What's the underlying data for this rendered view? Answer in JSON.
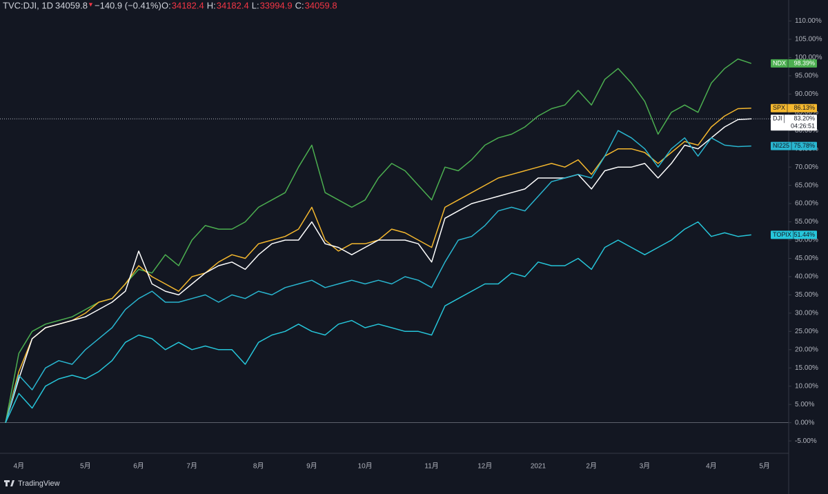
{
  "header": {
    "symbol": "TVC:DJI, 1D",
    "price": "34059.8",
    "arrow": "▼",
    "change": "−140.9 (−0.41%)",
    "ohlc": [
      {
        "label": "O:",
        "value": "34182.4"
      },
      {
        "label": "H:",
        "value": "34182.4"
      },
      {
        "label": "L:",
        "value": "33994.9"
      },
      {
        "label": "C:",
        "value": "34059.8"
      }
    ]
  },
  "brand": "TradingView",
  "chart_data": {
    "type": "line",
    "categories": [
      null,
      "4月",
      null,
      null,
      null,
      null,
      "5月",
      null,
      null,
      null,
      "6月",
      null,
      null,
      null,
      "7月",
      null,
      null,
      null,
      null,
      "8月",
      null,
      null,
      null,
      "9月",
      null,
      null,
      null,
      "10月",
      null,
      null,
      null,
      null,
      "11月",
      null,
      null,
      null,
      "12月",
      null,
      null,
      null,
      "2021",
      null,
      null,
      null,
      "2月",
      null,
      null,
      null,
      "3月",
      null,
      null,
      null,
      null,
      "4月",
      null,
      null,
      null,
      "5月"
    ],
    "ylim": [
      -8,
      115
    ],
    "yticks": [
      {
        "value": -5,
        "label": "-5.00%"
      },
      {
        "value": 0,
        "label": "0.00%"
      },
      {
        "value": 5,
        "label": "5.00%"
      },
      {
        "value": 10,
        "label": "10.00%"
      },
      {
        "value": 15,
        "label": "15.00%"
      },
      {
        "value": 20,
        "label": "20.00%"
      },
      {
        "value": 25,
        "label": "25.00%"
      },
      {
        "value": 30,
        "label": "30.00%"
      },
      {
        "value": 35,
        "label": "35.00%"
      },
      {
        "value": 40,
        "label": "40.00%"
      },
      {
        "value": 45,
        "label": "45.00%"
      },
      {
        "value": 50,
        "label": "50.00%"
      },
      {
        "value": 55,
        "label": "55.00%"
      },
      {
        "value": 60,
        "label": "60.00%"
      },
      {
        "value": 65,
        "label": "65.00%"
      },
      {
        "value": 70,
        "label": "70.00%"
      },
      {
        "value": 75,
        "label": "75.00%"
      },
      {
        "value": 80,
        "label": "80.00%"
      },
      {
        "value": 85,
        "label": "85.00%"
      },
      {
        "value": 90,
        "label": "90.00%"
      },
      {
        "value": 95,
        "label": "95.00%"
      },
      {
        "value": 100,
        "label": "100.00%"
      },
      {
        "value": 105,
        "label": "105.00%"
      },
      {
        "value": 110,
        "label": "110.00%"
      }
    ],
    "grid": false,
    "series": [
      {
        "name": "NDX",
        "color": "#4caf50",
        "label_text_color": "#ffffff",
        "last_label": "98.39%",
        "values": [
          0,
          19,
          25,
          27,
          28,
          29,
          31,
          33,
          34,
          38,
          42,
          41,
          46,
          43,
          50,
          54,
          53,
          53,
          55,
          59,
          61,
          63,
          70,
          76,
          63,
          61,
          59,
          61,
          67,
          71,
          69,
          65,
          61,
          70,
          69,
          72,
          76,
          78,
          79,
          81,
          84,
          86,
          87,
          91,
          87,
          94,
          97,
          93,
          88,
          79,
          85,
          87,
          85,
          93,
          97,
          99.6,
          98.39,
          null
        ]
      },
      {
        "name": "SPX",
        "color": "#f5b82e",
        "label_text_color": "#131722",
        "last_label": "86.13%",
        "values": [
          0,
          14,
          23,
          26,
          27,
          28,
          30,
          33,
          34,
          38,
          43,
          40,
          38,
          36,
          40,
          41,
          44,
          46,
          45,
          49,
          50,
          51,
          53,
          59,
          50,
          47,
          49,
          49,
          50,
          53,
          52,
          50,
          48,
          59,
          61,
          63,
          65,
          67,
          68,
          69,
          70,
          71,
          70,
          72,
          68,
          73,
          75,
          75,
          74,
          71,
          74,
          77,
          76,
          81,
          84,
          86,
          86.13,
          null
        ]
      },
      {
        "name": "DJI",
        "color": "#ffffff",
        "label_text_color": "#131722",
        "last_label": "83.20%",
        "countdown": "04:26:51",
        "values": [
          0,
          12,
          23,
          26,
          27,
          28,
          29,
          31,
          33,
          36,
          47,
          38,
          36,
          35,
          38,
          41,
          43,
          44,
          42,
          46,
          49,
          50,
          50,
          55,
          49,
          48,
          46,
          48,
          50,
          50,
          50,
          49,
          44,
          56,
          58,
          60,
          61,
          62,
          63,
          64,
          67,
          67,
          67,
          68,
          64,
          69,
          70,
          70,
          71,
          67,
          71,
          76,
          75,
          78,
          81,
          83,
          83.2,
          null
        ]
      },
      {
        "name": "NI225",
        "color": "#29b6d0",
        "label_text_color": "#131722",
        "last_label": "75.78%",
        "values": [
          0,
          13,
          9,
          15,
          17,
          16,
          20,
          23,
          26,
          31,
          34,
          36,
          33,
          33,
          34,
          35,
          33,
          35,
          34,
          36,
          35,
          37,
          38,
          39,
          37,
          38,
          39,
          38,
          39,
          38,
          40,
          39,
          37,
          44,
          50,
          51,
          54,
          58,
          59,
          58,
          62,
          66,
          67,
          68,
          67,
          73,
          80,
          78,
          75,
          70,
          75,
          78,
          73,
          78,
          76,
          75.6,
          75.78,
          null
        ]
      },
      {
        "name": "TOPIX",
        "color": "#26c6da",
        "label_text_color": "#131722",
        "last_label": "51.44%",
        "values": [
          0,
          8,
          4,
          10,
          12,
          13,
          12,
          14,
          17,
          22,
          24,
          23,
          20,
          22,
          20,
          21,
          20,
          20,
          16,
          22,
          24,
          25,
          27,
          25,
          24,
          27,
          28,
          26,
          27,
          26,
          25,
          25,
          24,
          32,
          34,
          36,
          38,
          38,
          41,
          40,
          44,
          43,
          43,
          45,
          42,
          48,
          50,
          48,
          46,
          48,
          50,
          53,
          55,
          51,
          52,
          51,
          51.44,
          null
        ]
      }
    ]
  }
}
